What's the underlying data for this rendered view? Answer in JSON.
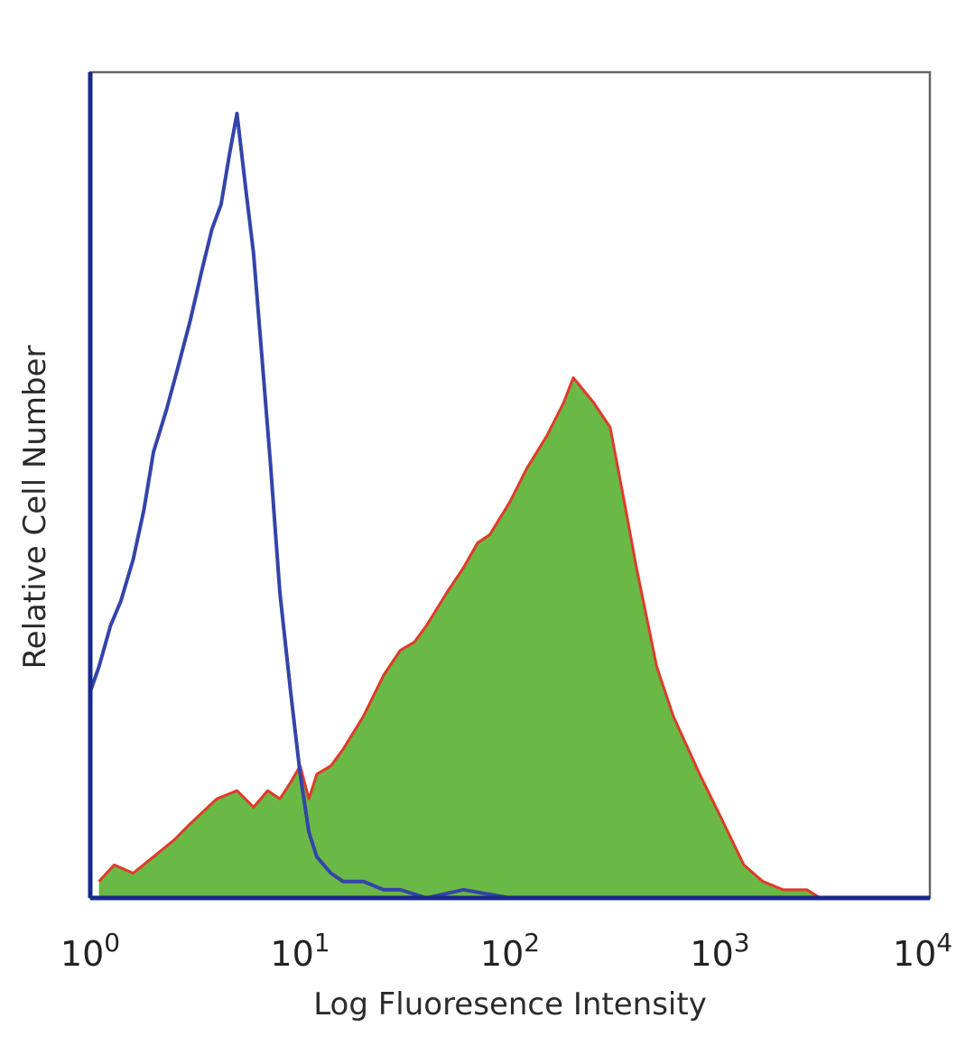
{
  "chart_data": {
    "type": "area",
    "title": "",
    "xlabel": "Log Fluoresence Intensity",
    "ylabel": "Relative Cell Number",
    "x_scale": "log",
    "xlim": [
      1,
      10000
    ],
    "ylim": [
      0,
      1
    ],
    "grid": false,
    "x_tick_labels": [
      {
        "base": "10",
        "exp": "0",
        "value": 1
      },
      {
        "base": "10",
        "exp": "1",
        "value": 10
      },
      {
        "base": "10",
        "exp": "2",
        "value": 100
      },
      {
        "base": "10",
        "exp": "3",
        "value": 1000
      },
      {
        "base": "10",
        "exp": "4",
        "value": 10000
      }
    ],
    "series": [
      {
        "style": "outline",
        "color": "#3344aa",
        "x": [
          1.0,
          1.1,
          1.25,
          1.4,
          1.6,
          1.8,
          2.0,
          2.3,
          2.6,
          3.0,
          3.4,
          3.8,
          4.2,
          4.6,
          5.0,
          5.5,
          6.0,
          6.6,
          7.2,
          8.0,
          9.0,
          10.0,
          11.0,
          12.0,
          14.0,
          16.0,
          20.0,
          25.0,
          30.0,
          40.0,
          60.0,
          100.0,
          1000.0,
          10000.0
        ],
        "y": [
          0.25,
          0.28,
          0.33,
          0.36,
          0.41,
          0.47,
          0.54,
          0.59,
          0.64,
          0.7,
          0.76,
          0.81,
          0.84,
          0.9,
          0.95,
          0.86,
          0.78,
          0.65,
          0.53,
          0.37,
          0.25,
          0.15,
          0.08,
          0.05,
          0.03,
          0.02,
          0.02,
          0.01,
          0.01,
          0.0,
          0.01,
          0.0,
          0.0,
          0.0
        ]
      },
      {
        "style": "filled",
        "fill_color": "#6ab845",
        "edge_color": "#e03a2a",
        "x": [
          1.1,
          1.3,
          1.6,
          2.0,
          2.5,
          3.0,
          4.0,
          5.0,
          6.0,
          7.0,
          8.0,
          9.0,
          10.0,
          11.0,
          12.0,
          14.0,
          16.0,
          20.0,
          25.0,
          30.0,
          35.0,
          40.0,
          50.0,
          60.0,
          70.0,
          80.0,
          100.0,
          120.0,
          150.0,
          180.0,
          200.0,
          250.0,
          300.0,
          350.0,
          400.0,
          500.0,
          600.0,
          800.0,
          1000.0,
          1300.0,
          1600.0,
          2000.0,
          2600.0,
          3000.0
        ],
        "y": [
          0.02,
          0.04,
          0.03,
          0.05,
          0.07,
          0.09,
          0.12,
          0.13,
          0.11,
          0.13,
          0.12,
          0.14,
          0.16,
          0.12,
          0.15,
          0.16,
          0.18,
          0.22,
          0.27,
          0.3,
          0.31,
          0.33,
          0.37,
          0.4,
          0.43,
          0.44,
          0.48,
          0.52,
          0.56,
          0.6,
          0.63,
          0.6,
          0.57,
          0.48,
          0.4,
          0.28,
          0.22,
          0.15,
          0.1,
          0.04,
          0.02,
          0.01,
          0.01,
          0.0
        ]
      }
    ]
  }
}
